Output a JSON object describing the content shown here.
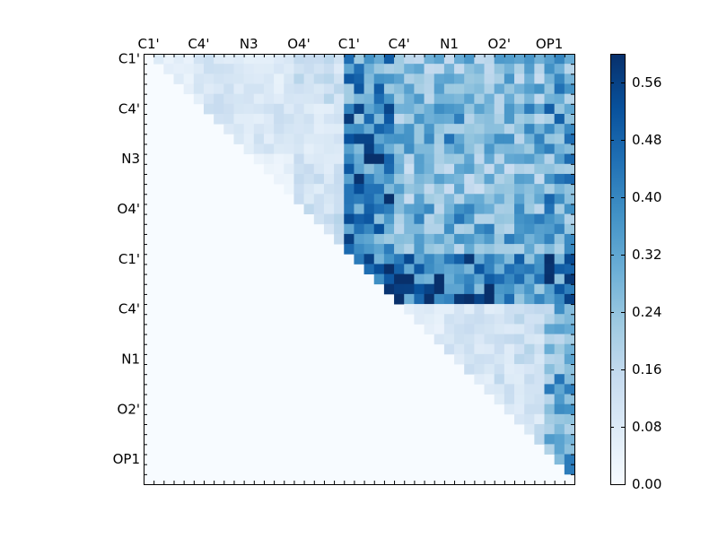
{
  "chart_data": {
    "type": "heatmap",
    "title": "",
    "xlabel": "",
    "ylabel": "",
    "x_tick_labels": [
      "C1'",
      "C4'",
      "N3",
      "O4'",
      "C1'",
      "C4'",
      "N1",
      "O2'",
      "OP1"
    ],
    "y_tick_labels": [
      "C1'",
      "C4'",
      "N3",
      "O4'",
      "C1'",
      "C4'",
      "N1",
      "O2'",
      "OP1"
    ],
    "tick_spacing": 5,
    "matrix_size": 43,
    "upper_triangular": true,
    "colorscale": "Blues",
    "colorbar": {
      "range": [
        0.0,
        0.6
      ],
      "tick_values": [
        0.0,
        0.08,
        0.16,
        0.24,
        0.32,
        0.4,
        0.48,
        0.56
      ],
      "tick_labels": [
        "0.00",
        "0.08",
        "0.16",
        "0.24",
        "0.32",
        "0.40",
        "0.48",
        "0.56"
      ]
    },
    "block_values": [
      [
        0.06,
        0.1,
        0.08,
        0.13,
        0.36,
        0.26,
        0.27,
        0.26,
        0.31
      ],
      [
        0,
        0.1,
        0.1,
        0.09,
        0.4,
        0.3,
        0.33,
        0.3,
        0.35
      ],
      [
        0,
        0,
        0.05,
        0.11,
        0.44,
        0.24,
        0.24,
        0.24,
        0.33
      ],
      [
        0,
        0,
        0,
        0.15,
        0.4,
        0.3,
        0.31,
        0.3,
        0.32
      ],
      [
        0,
        0,
        0,
        0,
        0.45,
        0.46,
        0.45,
        0.4,
        0.44
      ],
      [
        0,
        0,
        0,
        0,
        0,
        0.07,
        0.1,
        0.13,
        0.27
      ],
      [
        0,
        0,
        0,
        0,
        0,
        0,
        0.1,
        0.12,
        0.31
      ],
      [
        0,
        0,
        0,
        0,
        0,
        0,
        0,
        0.12,
        0.3
      ],
      [
        0,
        0,
        0,
        0,
        0,
        0,
        0,
        0,
        0.3
      ]
    ]
  }
}
